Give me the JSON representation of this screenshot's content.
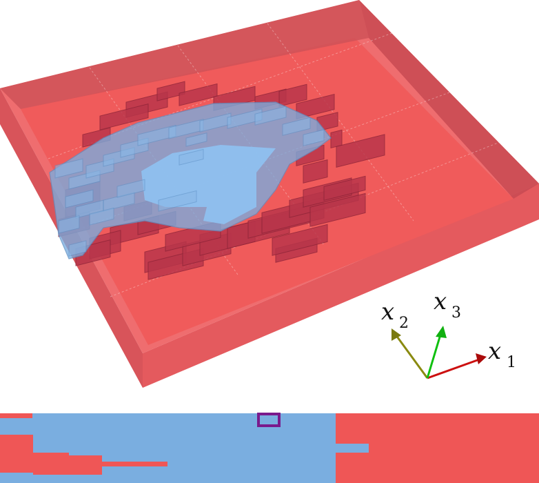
{
  "colors": {
    "matrix": "#ef5656",
    "matrix_dark": "#c94449",
    "matrix_top": "#f06a6a",
    "inclusion": "#7aaee0",
    "inclusion_dark": "#5d8fc4",
    "grain_red": "#b8354a",
    "grain_red_edge": "#8e2438",
    "marker": "#7a1a8c",
    "axis_x1": "#cc1010",
    "axis_x2": "#8a8a10",
    "axis_x3": "#10c010"
  },
  "axes": {
    "x1": {
      "symbol": "x",
      "sub": "1"
    },
    "x2": {
      "symbol": "x",
      "sub": "2"
    },
    "x3": {
      "symbol": "x",
      "sub": "3"
    }
  },
  "cross_section": {
    "description_visible": false
  }
}
